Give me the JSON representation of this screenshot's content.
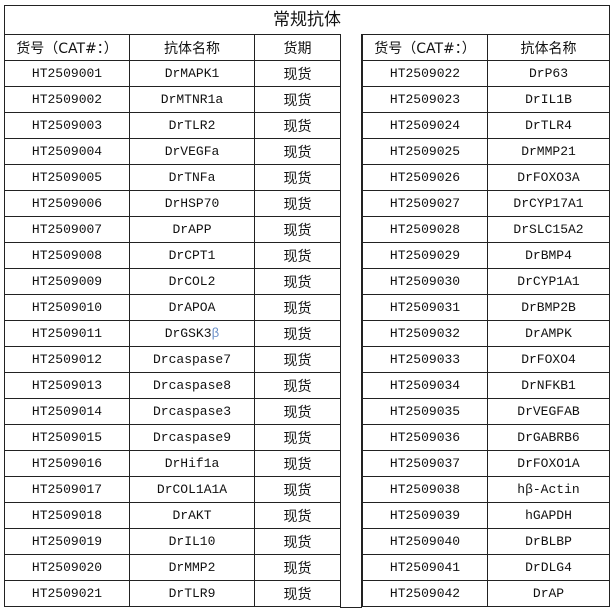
{
  "title": "常规抗体",
  "headers": {
    "cat": "货号（CAT#：）",
    "name": "抗体名称",
    "delivery": "货期"
  },
  "accent_beta_color": "#6a8fc8",
  "left_rows": [
    {
      "cat": "HT2509001",
      "name": "DrMAPK1",
      "delivery": "现货"
    },
    {
      "cat": "HT2509002",
      "name": "DrMTNR1a",
      "delivery": "现货"
    },
    {
      "cat": "HT2509003",
      "name": "DrTLR2",
      "delivery": "现货"
    },
    {
      "cat": "HT2509004",
      "name": "DrVEGFa",
      "delivery": "现货"
    },
    {
      "cat": "HT2509005",
      "name": "DrTNFa",
      "delivery": "现货"
    },
    {
      "cat": "HT2509006",
      "name": "DrHSP70",
      "delivery": "现货"
    },
    {
      "cat": "HT2509007",
      "name": "DrAPP",
      "delivery": "现货"
    },
    {
      "cat": "HT2509008",
      "name": "DrCPT1",
      "delivery": "现货"
    },
    {
      "cat": "HT2509009",
      "name": "DrCOL2",
      "delivery": "现货"
    },
    {
      "cat": "HT2509010",
      "name": "DrAPOA",
      "delivery": "现货"
    },
    {
      "cat": "HT2509011",
      "name": "DrGSK3β",
      "delivery": "现货"
    },
    {
      "cat": "HT2509012",
      "name": "Drcaspase7",
      "delivery": "现货"
    },
    {
      "cat": "HT2509013",
      "name": "Drcaspase8",
      "delivery": "现货"
    },
    {
      "cat": "HT2509014",
      "name": "Drcaspase3",
      "delivery": "现货"
    },
    {
      "cat": "HT2509015",
      "name": "Drcaspase9",
      "delivery": "现货"
    },
    {
      "cat": "HT2509016",
      "name": "DrHif1a",
      "delivery": "现货"
    },
    {
      "cat": "HT2509017",
      "name": "DrCOL1A1A",
      "delivery": "现货"
    },
    {
      "cat": "HT2509018",
      "name": "DrAKT",
      "delivery": "现货"
    },
    {
      "cat": "HT2509019",
      "name": "DrIL10",
      "delivery": "现货"
    },
    {
      "cat": "HT2509020",
      "name": "DrMMP2",
      "delivery": "现货"
    },
    {
      "cat": "HT2509021",
      "name": "DrTLR9",
      "delivery": "现货"
    }
  ],
  "right_rows": [
    {
      "cat": "HT2509022",
      "name": "DrP63"
    },
    {
      "cat": "HT2509023",
      "name": "DrIL1B"
    },
    {
      "cat": "HT2509024",
      "name": "DrTLR4"
    },
    {
      "cat": "HT2509025",
      "name": "DrMMP21"
    },
    {
      "cat": "HT2509026",
      "name": "DrFOXO3A"
    },
    {
      "cat": "HT2509027",
      "name": "DrCYP17A1"
    },
    {
      "cat": "HT2509028",
      "name": "DrSLC15A2"
    },
    {
      "cat": "HT2509029",
      "name": "DrBMP4"
    },
    {
      "cat": "HT2509030",
      "name": "DrCYP1A1"
    },
    {
      "cat": "HT2509031",
      "name": "DrBMP2B"
    },
    {
      "cat": "HT2509032",
      "name": "DrAMPK"
    },
    {
      "cat": "HT2509033",
      "name": "DrFOXO4"
    },
    {
      "cat": "HT2509034",
      "name": "DrNFKB1"
    },
    {
      "cat": "HT2509035",
      "name": "DrVEGFAB"
    },
    {
      "cat": "HT2509036",
      "name": "DrGABRB6"
    },
    {
      "cat": "HT2509037",
      "name": "DrFOXO1A"
    },
    {
      "cat": "HT2509038",
      "name": "hβ-Actin"
    },
    {
      "cat": "HT2509039",
      "name": "hGAPDH"
    },
    {
      "cat": "HT2509040",
      "name": "DrBLBP"
    },
    {
      "cat": "HT2509041",
      "name": "DrDLG4"
    },
    {
      "cat": "HT2509042",
      "name": "DrAP"
    }
  ]
}
